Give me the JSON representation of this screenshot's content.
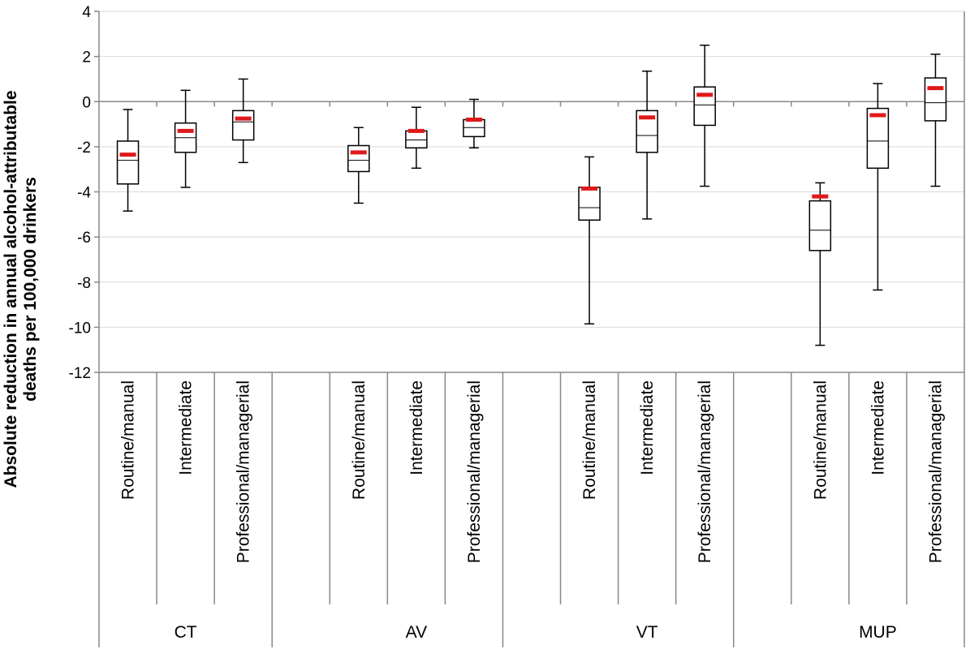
{
  "chart_data": {
    "type": "boxplot",
    "ylabel_lines": [
      "Absolute reduction in annual alcohol-attributable",
      "deaths per 100,000 drinkers"
    ],
    "ylim": [
      -12,
      4
    ],
    "yticks": [
      "4",
      "2",
      "0",
      "-2",
      "-4",
      "-6",
      "-8",
      "-10",
      "-12"
    ],
    "ytick_values": [
      4,
      2,
      0,
      -2,
      -4,
      -6,
      -8,
      -10,
      -12
    ],
    "grid": "horizontal",
    "mean_marker_color": "#e0191a",
    "groups": [
      {
        "name": "CT",
        "boxes": [
          {
            "category": "Routine/manual",
            "whisker_low": -4.85,
            "q1": -3.65,
            "median": -2.6,
            "q3": -1.75,
            "whisker_high": -0.35,
            "mean": -2.35
          },
          {
            "category": "Intermediate",
            "whisker_low": -3.8,
            "q1": -2.25,
            "median": -1.6,
            "q3": -0.95,
            "whisker_high": 0.5,
            "mean": -1.3
          },
          {
            "category": "Professional/managerial",
            "whisker_low": -2.7,
            "q1": -1.7,
            "median": -0.9,
            "q3": -0.4,
            "whisker_high": 1.0,
            "mean": -0.75
          }
        ]
      },
      {
        "name": "AV",
        "boxes": [
          {
            "category": "Routine/manual",
            "whisker_low": -4.5,
            "q1": -3.1,
            "median": -2.6,
            "q3": -1.95,
            "whisker_high": -1.15,
            "mean": -2.25
          },
          {
            "category": "Intermediate",
            "whisker_low": -2.95,
            "q1": -2.05,
            "median": -1.7,
            "q3": -1.3,
            "whisker_high": -0.25,
            "mean": -1.3
          },
          {
            "category": "Professional/managerial",
            "whisker_low": -2.05,
            "q1": -1.55,
            "median": -1.15,
            "q3": -0.8,
            "whisker_high": 0.1,
            "mean": -0.8
          }
        ]
      },
      {
        "name": "VT",
        "boxes": [
          {
            "category": "Routine/manual",
            "whisker_low": -9.85,
            "q1": -5.25,
            "median": -4.7,
            "q3": -3.8,
            "whisker_high": -2.45,
            "mean": -3.85
          },
          {
            "category": "Intermediate",
            "whisker_low": -5.2,
            "q1": -2.25,
            "median": -1.5,
            "q3": -0.4,
            "whisker_high": 1.35,
            "mean": -0.7
          },
          {
            "category": "Professional/managerial",
            "whisker_low": -3.75,
            "q1": -1.05,
            "median": -0.15,
            "q3": 0.65,
            "whisker_high": 2.5,
            "mean": 0.3
          }
        ]
      },
      {
        "name": "MUP",
        "boxes": [
          {
            "category": "Routine/manual",
            "whisker_low": -10.8,
            "q1": -6.6,
            "median": -5.7,
            "q3": -4.4,
            "whisker_high": -3.6,
            "mean": -4.2
          },
          {
            "category": "Intermediate",
            "whisker_low": -8.35,
            "q1": -2.95,
            "median": -1.75,
            "q3": -0.3,
            "whisker_high": 0.8,
            "mean": -0.6
          },
          {
            "category": "Professional/managerial",
            "whisker_low": -3.75,
            "q1": -0.85,
            "median": -0.05,
            "q3": 1.05,
            "whisker_high": 2.1,
            "mean": 0.6
          }
        ]
      }
    ]
  }
}
